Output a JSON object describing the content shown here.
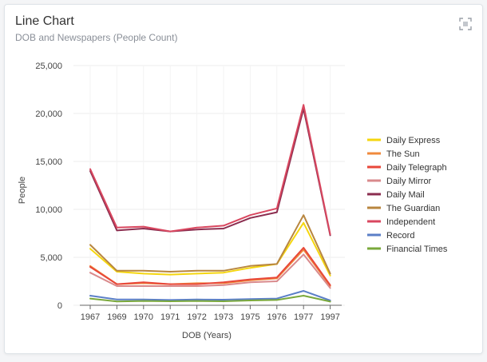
{
  "header": {
    "title": "Line Chart",
    "subtitle": "DOB and Newspapers (People Count)",
    "expand_icon": "expand-icon"
  },
  "chart_data": {
    "type": "line",
    "xlabel": "DOB (Years)",
    "ylabel": "People",
    "ylim": [
      0,
      25000
    ],
    "yticks": [
      0,
      5000,
      10000,
      15000,
      20000,
      25000
    ],
    "ytick_labels": [
      "0",
      "5,000",
      "10,000",
      "15,000",
      "20,000",
      "25,000"
    ],
    "categories": [
      "1967",
      "1969",
      "1970",
      "1971",
      "1972",
      "1973",
      "1975",
      "1976",
      "1977",
      "1997"
    ],
    "grid": true,
    "legend_position": "right",
    "series": [
      {
        "name": "Daily Express",
        "color": "#f5d60e",
        "values": [
          5900,
          3500,
          3300,
          3200,
          3300,
          3400,
          3900,
          4300,
          8600,
          3100
        ]
      },
      {
        "name": "The Sun",
        "color": "#f08a3c",
        "values": [
          4100,
          2200,
          2300,
          2200,
          2300,
          2300,
          2600,
          2800,
          5800,
          2000
        ]
      },
      {
        "name": "Daily Telegraph",
        "color": "#e8473a",
        "values": [
          4000,
          2200,
          2400,
          2200,
          2200,
          2400,
          2700,
          2900,
          6000,
          2100
        ]
      },
      {
        "name": "Daily Mirror",
        "color": "#d98a8c",
        "values": [
          3400,
          2000,
          2000,
          2000,
          2000,
          2100,
          2400,
          2500,
          5300,
          1800
        ]
      },
      {
        "name": "Daily Mail",
        "color": "#8b2d4f",
        "values": [
          14000,
          7800,
          8000,
          7700,
          7900,
          8000,
          9100,
          9700,
          20500,
          7300
        ]
      },
      {
        "name": "The Guardian",
        "color": "#b8863f",
        "values": [
          6300,
          3600,
          3600,
          3500,
          3600,
          3600,
          4100,
          4300,
          9400,
          3300
        ]
      },
      {
        "name": "Independent",
        "color": "#d9475f",
        "values": [
          14200,
          8100,
          8200,
          7700,
          8100,
          8300,
          9400,
          10100,
          20900,
          7400
        ]
      },
      {
        "name": "Record",
        "color": "#5b7fc7",
        "values": [
          1000,
          600,
          600,
          550,
          600,
          580,
          650,
          700,
          1500,
          500
        ]
      },
      {
        "name": "Financial Times",
        "color": "#7aa83b",
        "values": [
          700,
          400,
          450,
          420,
          450,
          420,
          500,
          550,
          1000,
          380
        ]
      }
    ]
  }
}
